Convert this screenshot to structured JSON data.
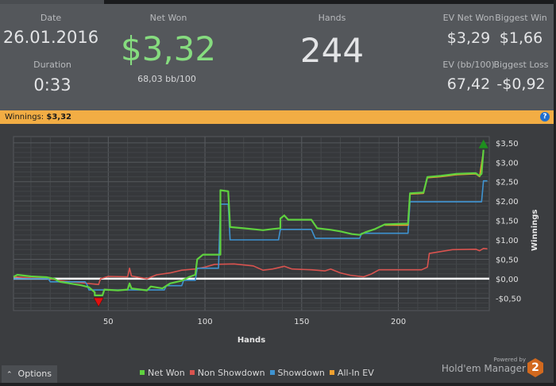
{
  "stats": {
    "date_label": "Date",
    "date": "26.01.2016",
    "duration_label": "Duration",
    "duration": "0:33",
    "net_won_label": "Net Won",
    "net_won": "$3,32",
    "bb100": "68,03 bb/100",
    "hands_label": "Hands",
    "hands": "244",
    "ev_net_won_label": "EV Net Won",
    "ev_net_won": "$3,29",
    "biggest_win_label": "Biggest Win",
    "biggest_win": "$1,66",
    "ev_bb100_label": "EV (bb/100)",
    "ev_bb100": "67,42",
    "biggest_loss_label": "Biggest Loss",
    "biggest_loss": "-$0,92"
  },
  "bar": {
    "label": "Winnings:",
    "value": "$3,32",
    "help_icon": "question-icon",
    "color": "#f2ad44"
  },
  "footer": {
    "options_label": "Options",
    "options_icon": "chevron-up-icon",
    "powered_by": "Powered by",
    "brand": "Hold'em Manager",
    "brand_badge": "2"
  },
  "chart_data": {
    "type": "line",
    "xlabel": "Hands",
    "ylabel": "Winnings",
    "xlim": [
      1,
      247
    ],
    "ylim": [
      -0.82,
      3.66
    ],
    "xticks": [
      50,
      100,
      150,
      200
    ],
    "xtick_labels": [
      "50",
      "100",
      "150",
      "200"
    ],
    "yticks": [
      -0.5,
      0,
      0.5,
      1,
      1.5,
      2,
      2.5,
      3,
      3.5
    ],
    "ytick_labels": [
      "-$0,50",
      "$0,00",
      "$0,50",
      "$1,00",
      "$1,50",
      "$2,00",
      "$2,50",
      "$3,00",
      "$3,50"
    ],
    "grid": true,
    "legend": "bottom",
    "series": [
      {
        "name": "Net Won",
        "color": "#5fd13f",
        "points": [
          [
            1,
            0.05
          ],
          [
            3,
            0.1
          ],
          [
            10,
            0.06
          ],
          [
            18,
            0.04
          ],
          [
            22,
            0.0
          ],
          [
            25,
            -0.08
          ],
          [
            30,
            -0.12
          ],
          [
            36,
            -0.17
          ],
          [
            40,
            -0.22
          ],
          [
            43,
            -0.35
          ],
          [
            43,
            -0.43
          ],
          [
            47,
            -0.43
          ],
          [
            48,
            -0.28
          ],
          [
            55,
            -0.3
          ],
          [
            60,
            -0.28
          ],
          [
            61,
            -0.12
          ],
          [
            62,
            -0.25
          ],
          [
            70,
            -0.3
          ],
          [
            72,
            -0.2
          ],
          [
            78,
            -0.25
          ],
          [
            82,
            -0.12
          ],
          [
            88,
            -0.05
          ],
          [
            92,
            0.05
          ],
          [
            95,
            0.1
          ],
          [
            96,
            0.5
          ],
          [
            99,
            0.62
          ],
          [
            108,
            0.62
          ],
          [
            108,
            2.28
          ],
          [
            112,
            2.25
          ],
          [
            113,
            1.33
          ],
          [
            120,
            1.3
          ],
          [
            126,
            1.27
          ],
          [
            130,
            1.25
          ],
          [
            135,
            1.28
          ],
          [
            139,
            1.3
          ],
          [
            139,
            1.55
          ],
          [
            141,
            1.63
          ],
          [
            143,
            1.52
          ],
          [
            155,
            1.52
          ],
          [
            158,
            1.3
          ],
          [
            165,
            1.26
          ],
          [
            170,
            1.22
          ],
          [
            176,
            1.15
          ],
          [
            180,
            1.13
          ],
          [
            183,
            1.2
          ],
          [
            188,
            1.28
          ],
          [
            193,
            1.4
          ],
          [
            205,
            1.42
          ],
          [
            206,
            2.2
          ],
          [
            213,
            2.22
          ],
          [
            215,
            2.62
          ],
          [
            222,
            2.65
          ],
          [
            230,
            2.7
          ],
          [
            240,
            2.72
          ],
          [
            242,
            2.65
          ],
          [
            243,
            2.7
          ],
          [
            244,
            3.32
          ]
        ]
      },
      {
        "name": "Non Showdown",
        "color": "#d9534f",
        "points": [
          [
            1,
            0.05
          ],
          [
            10,
            0.02
          ],
          [
            20,
            0.0
          ],
          [
            25,
            -0.05
          ],
          [
            35,
            -0.1
          ],
          [
            45,
            -0.15
          ],
          [
            46,
            0.0
          ],
          [
            50,
            0.06
          ],
          [
            60,
            0.05
          ],
          [
            61,
            0.27
          ],
          [
            62,
            0.07
          ],
          [
            70,
            0.0
          ],
          [
            75,
            0.1
          ],
          [
            82,
            0.15
          ],
          [
            88,
            0.22
          ],
          [
            95,
            0.25
          ],
          [
            100,
            0.3
          ],
          [
            105,
            0.37
          ],
          [
            115,
            0.38
          ],
          [
            125,
            0.33
          ],
          [
            130,
            0.22
          ],
          [
            135,
            0.25
          ],
          [
            141,
            0.32
          ],
          [
            145,
            0.25
          ],
          [
            155,
            0.23
          ],
          [
            162,
            0.2
          ],
          [
            165,
            0.25
          ],
          [
            170,
            0.15
          ],
          [
            175,
            0.09
          ],
          [
            182,
            0.05
          ],
          [
            186,
            0.12
          ],
          [
            190,
            0.23
          ],
          [
            212,
            0.23
          ],
          [
            215,
            0.3
          ],
          [
            216,
            0.65
          ],
          [
            222,
            0.7
          ],
          [
            228,
            0.75
          ],
          [
            240,
            0.76
          ],
          [
            242,
            0.72
          ],
          [
            244,
            0.78
          ],
          [
            246,
            0.77
          ]
        ]
      },
      {
        "name": "Showdown",
        "color": "#3e93d1",
        "points": [
          [
            1,
            0.0
          ],
          [
            19,
            0.0
          ],
          [
            20,
            -0.08
          ],
          [
            38,
            -0.08
          ],
          [
            39,
            -0.15
          ],
          [
            40,
            -0.29
          ],
          [
            79,
            -0.29
          ],
          [
            80,
            -0.18
          ],
          [
            88,
            -0.18
          ],
          [
            89,
            -0.04
          ],
          [
            95,
            -0.04
          ],
          [
            96,
            0.27
          ],
          [
            107,
            0.27
          ],
          [
            108,
            1.92
          ],
          [
            112,
            1.92
          ],
          [
            113,
            1.0
          ],
          [
            138,
            1.0
          ],
          [
            139,
            1.27
          ],
          [
            155,
            1.27
          ],
          [
            157,
            1.04
          ],
          [
            180,
            1.04
          ],
          [
            181,
            1.17
          ],
          [
            205,
            1.17
          ],
          [
            206,
            1.98
          ],
          [
            243,
            1.98
          ],
          [
            244,
            2.52
          ],
          [
            246,
            2.52
          ]
        ]
      },
      {
        "name": "All-In EV",
        "color": "#f0a030",
        "points": [
          [
            193,
            1.38
          ],
          [
            205,
            1.38
          ],
          [
            206,
            2.18
          ],
          [
            213,
            2.2
          ],
          [
            215,
            2.6
          ],
          [
            222,
            2.63
          ],
          [
            230,
            2.68
          ],
          [
            240,
            2.7
          ],
          [
            242,
            2.63
          ],
          [
            244,
            3.29
          ]
        ]
      }
    ],
    "markers": [
      {
        "type": "max",
        "hand": 244,
        "value": 3.32,
        "color": "#1e8f1e"
      },
      {
        "type": "min",
        "hand": 45,
        "value": -0.43,
        "color": "#e01010"
      }
    ]
  }
}
